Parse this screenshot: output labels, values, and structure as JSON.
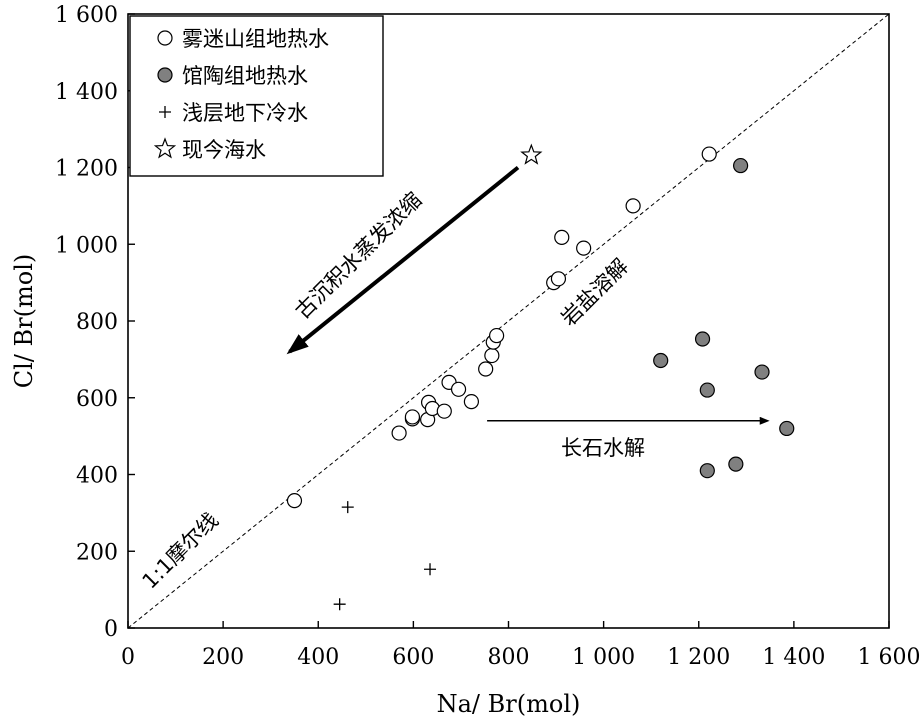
{
  "chart_data": {
    "type": "scatter",
    "xlabel": "Na/ Br(mol)",
    "ylabel": "Cl/ Br(mol)",
    "xlim": [
      0,
      1600
    ],
    "ylim": [
      0,
      1600
    ],
    "x_ticks": [
      0,
      200,
      400,
      600,
      800,
      1000,
      1200,
      1400,
      1600
    ],
    "x_tick_labels": [
      "0",
      "200",
      "400",
      "600",
      "800",
      "1 000",
      "1 200",
      "1 400",
      "1 600"
    ],
    "y_ticks": [
      0,
      200,
      400,
      600,
      800,
      1000,
      1200,
      1400,
      1600
    ],
    "y_tick_labels": [
      "0",
      "200",
      "400",
      "600",
      "800",
      "1 000",
      "1 200",
      "1 400",
      "1 600"
    ],
    "grid": false,
    "legend_position": "top-left",
    "reference_line": {
      "label": "1:1摩尔线",
      "slope": 1
    },
    "series": [
      {
        "name": "雾迷山组地热水",
        "marker": "open-circle",
        "points": [
          [
            350,
            332
          ],
          [
            570,
            508
          ],
          [
            598,
            545
          ],
          [
            598,
            550
          ],
          [
            630,
            543
          ],
          [
            632,
            588
          ],
          [
            640,
            572
          ],
          [
            665,
            565
          ],
          [
            675,
            640
          ],
          [
            695,
            622
          ],
          [
            722,
            590
          ],
          [
            752,
            675
          ],
          [
            765,
            710
          ],
          [
            768,
            745
          ],
          [
            775,
            762
          ],
          [
            895,
            900
          ],
          [
            905,
            910
          ],
          [
            912,
            1018
          ],
          [
            958,
            990
          ],
          [
            1062,
            1100
          ],
          [
            1222,
            1235
          ]
        ]
      },
      {
        "name": "馆陶组地热水",
        "marker": "filled-circle",
        "color": "#808080",
        "points": [
          [
            1120,
            697
          ],
          [
            1208,
            753
          ],
          [
            1218,
            620
          ],
          [
            1218,
            410
          ],
          [
            1278,
            427
          ],
          [
            1288,
            1205
          ],
          [
            1333,
            667
          ],
          [
            1385,
            520
          ]
        ]
      },
      {
        "name": "浅层地下冷水",
        "marker": "plus",
        "points": [
          [
            462,
            315
          ],
          [
            635,
            153
          ],
          [
            445,
            62
          ]
        ]
      },
      {
        "name": "现今海水",
        "marker": "star",
        "points": [
          [
            848,
            1232
          ]
        ]
      }
    ],
    "annotations": [
      {
        "text": "古沉积水蒸发浓缩",
        "arrow": {
          "from": [
            820,
            1200
          ],
          "to": [
            340,
            720
          ]
        }
      },
      {
        "text": "岩盐溶解"
      },
      {
        "text": "长石水解",
        "arrow": {
          "from": [
            755,
            540
          ],
          "to": [
            1345,
            540
          ]
        }
      }
    ]
  }
}
